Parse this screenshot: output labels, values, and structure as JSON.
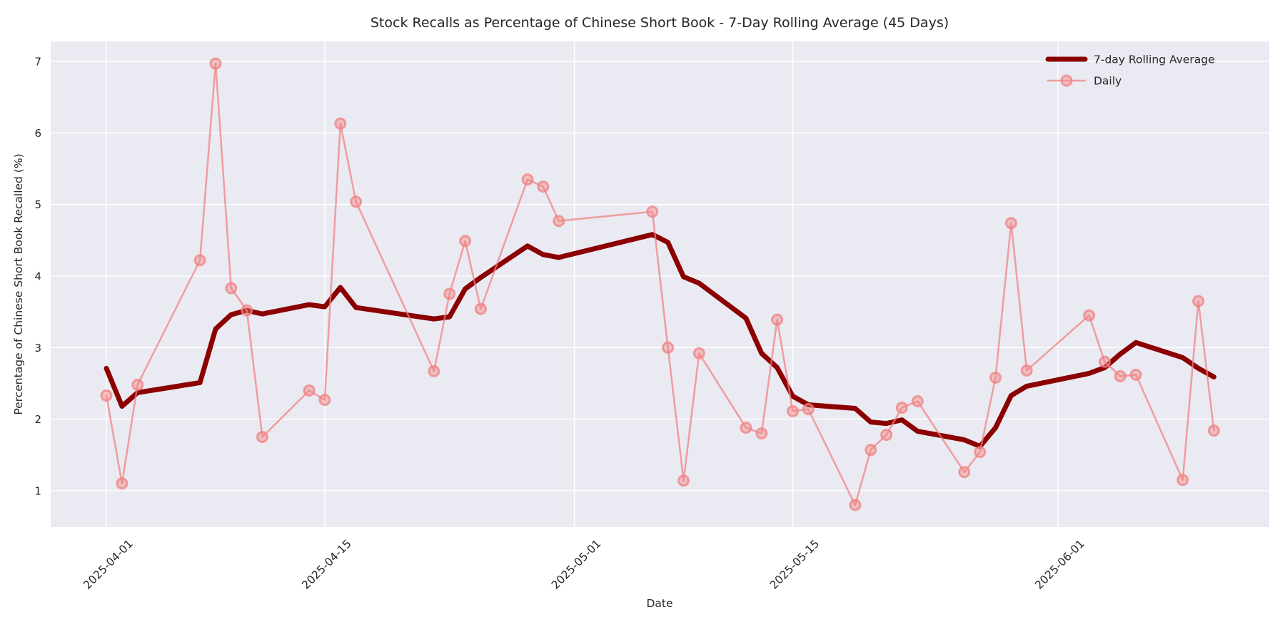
{
  "figure": {
    "background": "#FFFFFF"
  },
  "chart_data": {
    "type": "line",
    "title": "Stock Recalls as Percentage of Chinese Short Book - 7-Day Rolling Average (45 Days)",
    "xlabel": "Date",
    "ylabel": "Percentage of Chinese Short Book Recalled (%)",
    "plot_background": "#EAEAF2",
    "grid_color": "#FFFFFF",
    "text_color": "#262626",
    "grid": true,
    "legend_position": "upper right",
    "x_tick_labels": [
      "2025-04-01",
      "2025-04-15",
      "2025-05-01",
      "2025-05-15",
      "2025-06-01"
    ],
    "y_tick_labels": [
      "1",
      "2",
      "3",
      "4",
      "5",
      "6",
      "7"
    ],
    "ylim": [
      0.49,
      7.28
    ],
    "x_epoch": "2025-04-01",
    "xlim_days": [
      -3.57,
      74.55
    ],
    "x": [
      "2025-04-01",
      "2025-04-02",
      "2025-04-03",
      "2025-04-07",
      "2025-04-08",
      "2025-04-09",
      "2025-04-10",
      "2025-04-11",
      "2025-04-14",
      "2025-04-15",
      "2025-04-16",
      "2025-04-17",
      "2025-04-22",
      "2025-04-23",
      "2025-04-24",
      "2025-04-25",
      "2025-04-28",
      "2025-04-29",
      "2025-04-30",
      "2025-05-06",
      "2025-05-07",
      "2025-05-08",
      "2025-05-09",
      "2025-05-12",
      "2025-05-13",
      "2025-05-14",
      "2025-05-15",
      "2025-05-16",
      "2025-05-19",
      "2025-05-20",
      "2025-05-21",
      "2025-05-22",
      "2025-05-23",
      "2025-05-26",
      "2025-05-27",
      "2025-05-28",
      "2025-05-29",
      "2025-05-30",
      "2025-06-03",
      "2025-06-04",
      "2025-06-05",
      "2025-06-06",
      "2025-06-09",
      "2025-06-10",
      "2025-06-11"
    ],
    "series": [
      {
        "name": "7-day Rolling Average",
        "color": "#8B0000",
        "line_width": 7,
        "markers": false,
        "opacity": 1,
        "values": [
          2.71,
          2.18,
          2.37,
          2.51,
          3.26,
          3.46,
          3.52,
          3.47,
          3.6,
          3.57,
          3.84,
          3.56,
          3.4,
          3.43,
          3.82,
          3.98,
          4.42,
          4.3,
          4.26,
          4.58,
          4.47,
          3.99,
          3.9,
          3.41,
          2.92,
          2.72,
          2.32,
          2.2,
          2.15,
          1.96,
          1.94,
          1.99,
          1.83,
          1.71,
          1.62,
          1.88,
          2.33,
          2.46,
          2.64,
          2.72,
          2.91,
          3.07,
          2.86,
          2.71,
          2.59
        ]
      },
      {
        "name": "Daily",
        "color": "#F08080",
        "line_width": 2.5,
        "markers": true,
        "marker_radius": 7,
        "opacity": 0.72,
        "values": [
          2.33,
          1.1,
          2.48,
          4.22,
          6.97,
          3.83,
          3.52,
          1.75,
          2.4,
          2.27,
          6.13,
          5.04,
          2.67,
          3.75,
          4.49,
          3.54,
          5.35,
          5.25,
          4.77,
          4.9,
          3.0,
          1.14,
          2.92,
          1.88,
          1.8,
          3.39,
          2.11,
          2.14,
          0.8,
          1.57,
          1.78,
          2.16,
          2.25,
          1.26,
          1.54,
          2.58,
          4.74,
          2.68,
          3.45,
          2.8,
          2.6,
          2.62,
          1.15,
          3.65,
          1.84
        ]
      }
    ]
  }
}
